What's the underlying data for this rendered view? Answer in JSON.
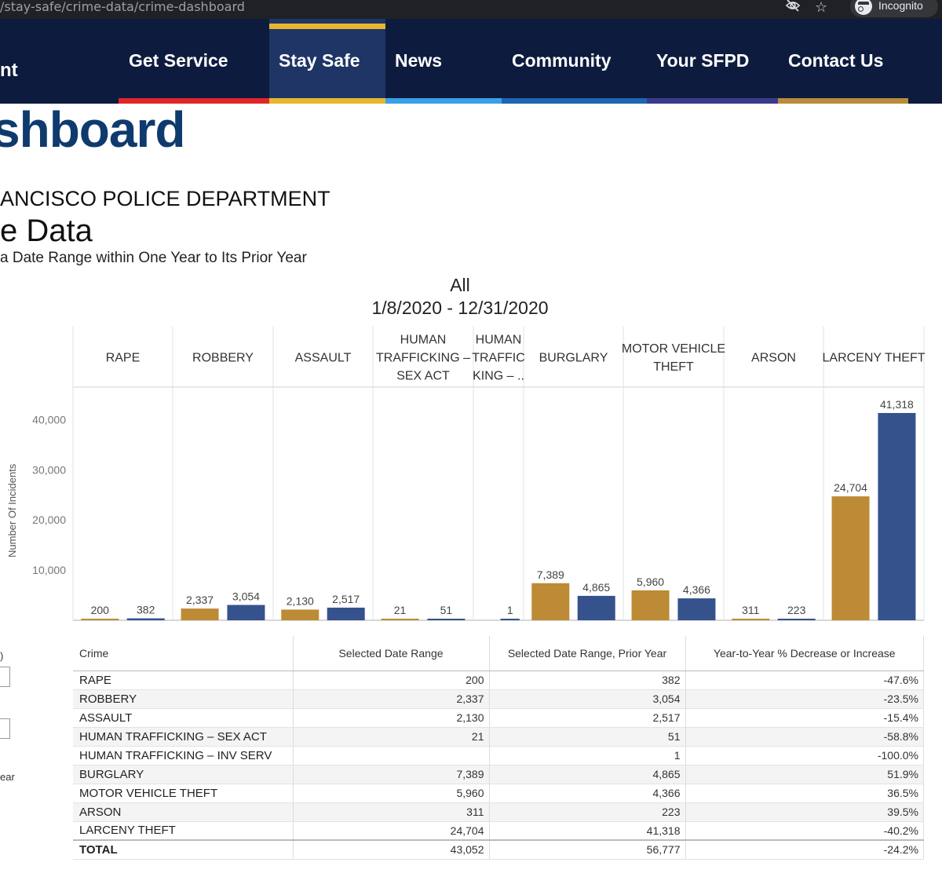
{
  "browser": {
    "url": "/stay-safe/crime-data/crime-dashboard",
    "incognito_label": "Incognito"
  },
  "nav": {
    "brand_fragment": "nt",
    "items": [
      {
        "label": "Get Service",
        "color": "#e0262b"
      },
      {
        "label": "Stay Safe",
        "color": "#e8b62c"
      },
      {
        "label": "News",
        "color": "#3aa0e6"
      },
      {
        "label": "Community",
        "color": "#1d66b0"
      },
      {
        "label": "Your SFPD",
        "color": "#3a3a8c"
      },
      {
        "label": "Contact Us",
        "color": "#b88c3c"
      }
    ]
  },
  "page": {
    "title_fragment": "shboard",
    "department": "ANCISCO POLICE DEPARTMENT",
    "crime_data": "e Data",
    "subtitle": "a Date Range within One Year to Its Prior Year",
    "district": "All",
    "date_range": "1/8/2020 - 12/31/2020"
  },
  "filters": {
    "frag1": ")",
    "frag2": "ear"
  },
  "chart_data": {
    "type": "bar",
    "ylabel": "Number Of Incidents",
    "ylim": [
      0,
      45000
    ],
    "yticks": [
      10000,
      20000,
      30000,
      40000
    ],
    "ytick_labels": [
      "10,000",
      "20,000",
      "30,000",
      "40,000"
    ],
    "series_colors": {
      "selected": "#bd8a35",
      "prior": "#36528c"
    },
    "categories": [
      {
        "lines": [
          "RAPE"
        ],
        "selected": 200,
        "prior": 382,
        "selected_label": "200",
        "prior_label": "382"
      },
      {
        "lines": [
          "ROBBERY"
        ],
        "selected": 2337,
        "prior": 3054,
        "selected_label": "2,337",
        "prior_label": "3,054"
      },
      {
        "lines": [
          "ASSAULT"
        ],
        "selected": 2130,
        "prior": 2517,
        "selected_label": "2,130",
        "prior_label": "2,517"
      },
      {
        "lines": [
          "HUMAN",
          "TRAFFICKING –",
          "SEX ACT"
        ],
        "selected": 21,
        "prior": 51,
        "selected_label": "21",
        "prior_label": "51"
      },
      {
        "lines": [
          "HUMAN",
          "TRAFFIC",
          "KING – .."
        ],
        "selected": null,
        "prior": 1,
        "selected_label": "",
        "prior_label": "1"
      },
      {
        "lines": [
          "BURGLARY"
        ],
        "selected": 7389,
        "prior": 4865,
        "selected_label": "7,389",
        "prior_label": "4,865"
      },
      {
        "lines": [
          "MOTOR VEHICLE",
          "THEFT"
        ],
        "selected": 5960,
        "prior": 4366,
        "selected_label": "5,960",
        "prior_label": "4,366"
      },
      {
        "lines": [
          "ARSON"
        ],
        "selected": 311,
        "prior": 223,
        "selected_label": "311",
        "prior_label": "223"
      },
      {
        "lines": [
          "LARCENY THEFT"
        ],
        "selected": 24704,
        "prior": 41318,
        "selected_label": "24,704",
        "prior_label": "41,318"
      }
    ]
  },
  "table": {
    "headers": [
      "Crime",
      "Selected Date Range",
      "Selected Date Range, Prior Year",
      "Year-to-Year % Decrease or Increase"
    ],
    "rows": [
      [
        "RAPE",
        "200",
        "382",
        "-47.6%"
      ],
      [
        "ROBBERY",
        "2,337",
        "3,054",
        "-23.5%"
      ],
      [
        "ASSAULT",
        "2,130",
        "2,517",
        "-15.4%"
      ],
      [
        "HUMAN TRAFFICKING – SEX ACT",
        "21",
        "51",
        "-58.8%"
      ],
      [
        "HUMAN TRAFFICKING – INV SERV",
        "",
        "1",
        "-100.0%"
      ],
      [
        "BURGLARY",
        "7,389",
        "4,865",
        "51.9%"
      ],
      [
        "MOTOR VEHICLE THEFT",
        "5,960",
        "4,366",
        "36.5%"
      ],
      [
        "ARSON",
        "311",
        "223",
        "39.5%"
      ],
      [
        "LARCENY THEFT",
        "24,704",
        "41,318",
        "-40.2%"
      ]
    ],
    "total": [
      "TOTAL",
      "43,052",
      "56,777",
      "-24.2%"
    ]
  }
}
